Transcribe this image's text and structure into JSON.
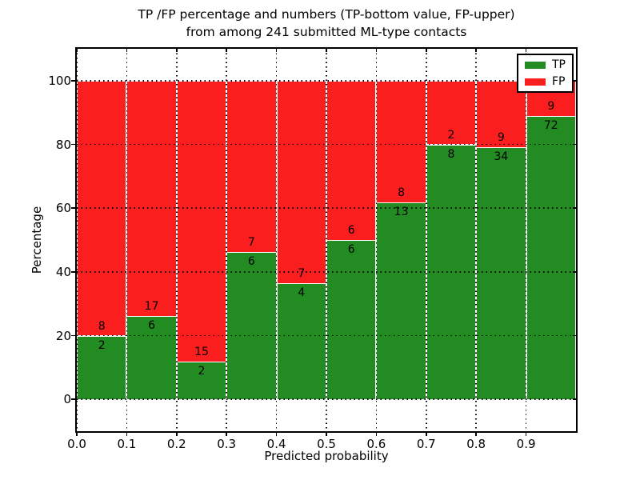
{
  "chart_data": {
    "type": "bar",
    "stacked": true,
    "title": "TP /FP percentage and numbers (TP-bottom value, FP-upper)\nfrom among 241 submitted ML-type contacts",
    "title_line1": "TP /FP percentage and numbers (TP-bottom value, FP-upper)",
    "title_line2": "from among 241 submitted ML-type contacts",
    "xlabel": "Predicted probability",
    "ylabel": "Percentage",
    "xlim": [
      0.0,
      1.0
    ],
    "ylim": [
      -10,
      110
    ],
    "x_ticks": [
      0.0,
      0.1,
      0.2,
      0.3,
      0.4,
      0.5,
      0.6,
      0.7,
      0.8,
      0.9
    ],
    "x_tick_labels": [
      "0.0",
      "0.1",
      "0.2",
      "0.3",
      "0.4",
      "0.5",
      "0.6",
      "0.7",
      "0.8",
      "0.9"
    ],
    "y_ticks": [
      0,
      20,
      40,
      60,
      80,
      100
    ],
    "y_tick_labels": [
      "0",
      "20",
      "40",
      "60",
      "80",
      "100"
    ],
    "grid": "dotted",
    "bin_edges": [
      0.0,
      0.1,
      0.2,
      0.3,
      0.4,
      0.5,
      0.6,
      0.7,
      0.8,
      0.9,
      1.0
    ],
    "series": [
      {
        "name": "TP",
        "color": "#228b22",
        "counts": [
          2,
          6,
          2,
          6,
          4,
          6,
          13,
          8,
          34,
          72
        ]
      },
      {
        "name": "FP",
        "color": "#fa1e1e",
        "counts": [
          8,
          17,
          15,
          7,
          7,
          6,
          8,
          2,
          9,
          9
        ]
      }
    ],
    "tp_percent": [
      20.0,
      26.1,
      11.8,
      46.2,
      36.4,
      50.0,
      61.9,
      80.0,
      79.1,
      88.9
    ],
    "total_contacts": 241,
    "bar_edge_color": "#ffffff",
    "legend": {
      "position": "upper right",
      "entries": [
        "TP",
        "FP"
      ]
    }
  }
}
